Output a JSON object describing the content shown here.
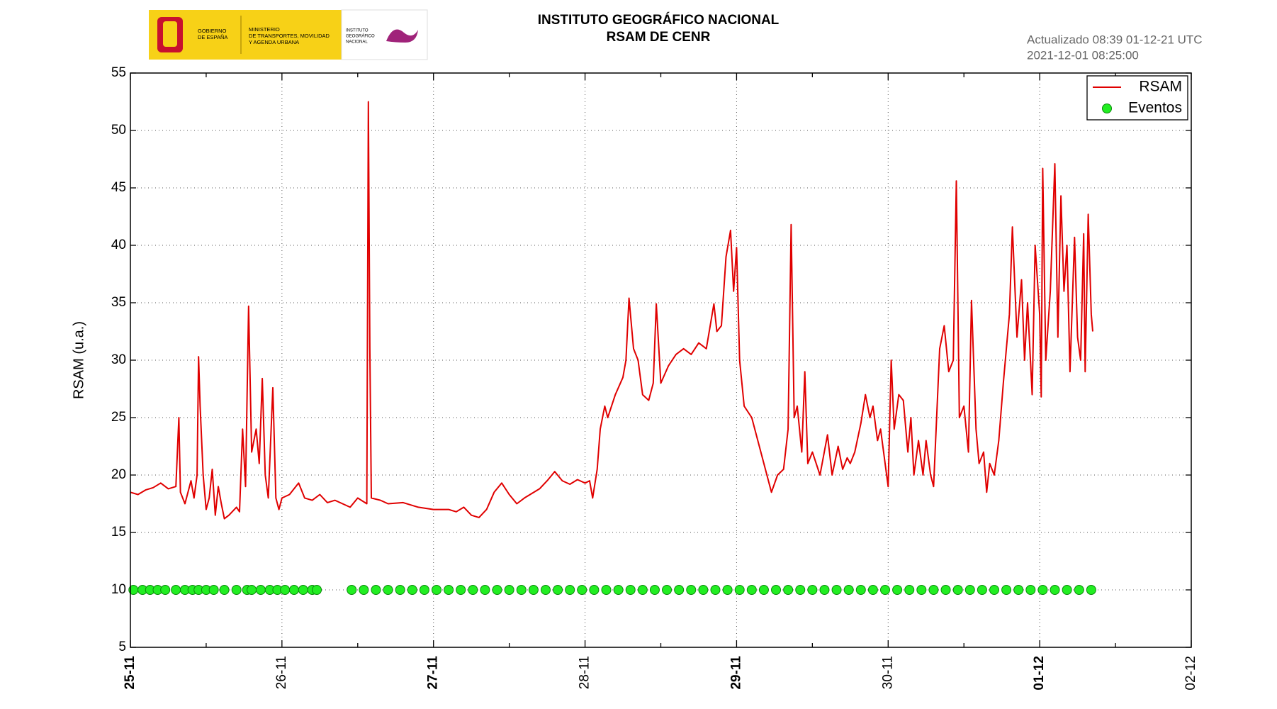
{
  "header": {
    "logo": {
      "gov": [
        "GOBIERNO",
        "DE ESPAÑA"
      ],
      "ministry": [
        "MINISTERIO",
        "DE TRANSPORTES, MOVILIDAD",
        "Y AGENDA URBANA"
      ],
      "ign": [
        "INSTITUTO",
        "GEOGRÁFICO",
        "NACIONAL"
      ]
    },
    "updated": [
      "Actualizado 08:39 01-12-21 UTC",
      "2021-12-01 08:25:00"
    ]
  },
  "chart_data": {
    "type": "line",
    "title": [
      "INSTITUTO GEOGRÁFICO NACIONAL",
      "RSAM DE CENR"
    ],
    "ylabel": "RSAM (u.a.)",
    "xlim": [
      0,
      7
    ],
    "xticks": [
      {
        "value": 0,
        "label": "25-11"
      },
      {
        "value": 1,
        "label": "26-11"
      },
      {
        "value": 2,
        "label": "27-11"
      },
      {
        "value": 3,
        "label": "28-11"
      },
      {
        "value": 4,
        "label": "29-11"
      },
      {
        "value": 5,
        "label": "30-11"
      },
      {
        "value": 6,
        "label": "01-12"
      },
      {
        "value": 7,
        "label": "02-12"
      }
    ],
    "xminor_ticks": [
      0.5,
      1.5,
      2.5,
      3.5,
      4.5,
      5.5,
      6.5
    ],
    "ylim": [
      5,
      55
    ],
    "yticks": [
      5,
      10,
      15,
      20,
      25,
      30,
      35,
      40,
      45,
      50,
      55
    ],
    "grid": true,
    "legend": "upper right",
    "series": [
      {
        "name": "RSAM",
        "type": "line",
        "color": "#e00000",
        "x": [
          0,
          0.05,
          0.1,
          0.15,
          0.2,
          0.25,
          0.3,
          0.32,
          0.33,
          0.36,
          0.4,
          0.42,
          0.44,
          0.45,
          0.46,
          0.48,
          0.5,
          0.52,
          0.54,
          0.56,
          0.58,
          0.6,
          0.62,
          0.65,
          0.7,
          0.72,
          0.74,
          0.76,
          0.78,
          0.8,
          0.83,
          0.85,
          0.87,
          0.89,
          0.91,
          0.94,
          0.96,
          0.98,
          1.0,
          1.05,
          1.11,
          1.15,
          1.2,
          1.25,
          1.3,
          1.35,
          1.4,
          1.45,
          1.5,
          1.56,
          1.57,
          1.58,
          1.59,
          1.65,
          1.7,
          1.8,
          1.9,
          2.0,
          2.1,
          2.15,
          2.2,
          2.25,
          2.3,
          2.35,
          2.4,
          2.45,
          2.5,
          2.55,
          2.6,
          2.7,
          2.75,
          2.8,
          2.85,
          2.9,
          2.95,
          3.0,
          3.03,
          3.05,
          3.08,
          3.1,
          3.13,
          3.15,
          3.2,
          3.25,
          3.27,
          3.29,
          3.32,
          3.35,
          3.38,
          3.42,
          3.45,
          3.47,
          3.5,
          3.55,
          3.6,
          3.65,
          3.7,
          3.75,
          3.8,
          3.85,
          3.87,
          3.9,
          3.93,
          3.96,
          3.98,
          4.0,
          4.02,
          4.05,
          4.1,
          4.15,
          4.2,
          4.23,
          4.27,
          4.31,
          4.34,
          4.36,
          4.38,
          4.4,
          4.43,
          4.45,
          4.47,
          4.5,
          4.55,
          4.6,
          4.63,
          4.67,
          4.7,
          4.73,
          4.75,
          4.78,
          4.82,
          4.85,
          4.88,
          4.9,
          4.93,
          4.95,
          4.98,
          5.0,
          5.02,
          5.04,
          5.07,
          5.1,
          5.13,
          5.15,
          5.17,
          5.2,
          5.23,
          5.25,
          5.28,
          5.3,
          5.32,
          5.34,
          5.37,
          5.4,
          5.43,
          5.45,
          5.47,
          5.5,
          5.53,
          5.55,
          5.58,
          5.6,
          5.63,
          5.65,
          5.67,
          5.7,
          5.73,
          5.76,
          5.8,
          5.82,
          5.85,
          5.88,
          5.9,
          5.92,
          5.95,
          5.97,
          6.0,
          6.01,
          6.02,
          6.04,
          6.07,
          6.1,
          6.12,
          6.14,
          6.16,
          6.18,
          6.2,
          6.23,
          6.25,
          6.27,
          6.29,
          6.3,
          6.32,
          6.34,
          6.35
        ],
        "values": [
          18.5,
          18.3,
          18.7,
          18.9,
          19.3,
          18.8,
          19.0,
          25.0,
          18.5,
          17.5,
          19.5,
          18,
          20,
          30.3,
          26,
          20,
          17,
          18,
          20.5,
          16.5,
          19,
          17.5,
          16.2,
          16.5,
          17.2,
          16.8,
          24,
          19,
          34.7,
          22,
          24,
          21,
          28.4,
          20,
          18,
          27.6,
          18,
          17,
          18,
          18.3,
          19.3,
          18,
          17.8,
          18.3,
          17.6,
          17.8,
          17.5,
          17.2,
          18,
          17.5,
          52.5,
          31,
          18,
          17.8,
          17.5,
          17.6,
          17.2,
          17.0,
          17.0,
          16.8,
          17.2,
          16.5,
          16.3,
          17,
          18.5,
          19.3,
          18.3,
          17.5,
          18.0,
          18.8,
          19.5,
          20.3,
          19.5,
          19.2,
          19.6,
          19.3,
          19.5,
          18.0,
          20.5,
          24,
          26,
          25,
          27,
          28.5,
          30,
          35.4,
          31,
          30,
          27,
          26.5,
          28,
          34.9,
          28,
          29.5,
          30.5,
          31,
          30.5,
          31.5,
          31,
          34.9,
          32.5,
          33,
          39,
          41.3,
          36,
          39.8,
          30,
          26,
          25,
          22.5,
          20,
          18.5,
          20,
          20.5,
          24,
          41.8,
          25,
          26,
          22,
          29,
          21,
          22,
          20,
          23.5,
          20,
          22.5,
          20.5,
          21.5,
          21,
          22,
          24.5,
          27,
          25,
          26,
          23,
          24,
          21,
          19,
          30,
          24,
          27,
          26.5,
          22,
          25,
          20,
          23,
          20,
          23,
          20,
          19,
          25,
          31,
          33,
          29,
          30,
          45.6,
          25,
          26,
          22,
          35.2,
          24,
          21,
          22,
          18.5,
          21,
          20,
          23,
          28,
          34,
          41.6,
          32,
          37,
          30,
          35,
          27,
          40,
          34,
          26.8,
          46.7,
          30,
          36,
          47.1,
          32,
          44.3,
          36,
          40,
          29,
          40.7,
          32,
          30,
          41,
          29,
          42.7,
          34,
          32.5
        ]
      },
      {
        "name": "Eventos",
        "type": "scatter",
        "color": "#22ee22",
        "x": [
          0.02,
          0.08,
          0.13,
          0.18,
          0.23,
          0.3,
          0.36,
          0.41,
          0.45,
          0.5,
          0.55,
          0.62,
          0.7,
          0.77,
          0.8,
          0.86,
          0.92,
          0.97,
          1.02,
          1.08,
          1.14,
          1.2,
          1.23,
          1.46,
          1.54,
          1.62,
          1.7,
          1.78,
          1.86,
          1.94,
          2.02,
          2.1,
          2.18,
          2.26,
          2.34,
          2.42,
          2.5,
          2.58,
          2.66,
          2.74,
          2.82,
          2.9,
          2.98,
          3.06,
          3.14,
          3.22,
          3.3,
          3.38,
          3.46,
          3.54,
          3.62,
          3.7,
          3.78,
          3.86,
          3.94,
          4.02,
          4.1,
          4.18,
          4.26,
          4.34,
          4.42,
          4.5,
          4.58,
          4.66,
          4.74,
          4.82,
          4.9,
          4.98,
          5.06,
          5.14,
          5.22,
          5.3,
          5.38,
          5.46,
          5.54,
          5.62,
          5.7,
          5.78,
          5.86,
          5.94,
          6.02,
          6.1,
          6.18,
          6.26,
          6.34
        ],
        "values": [
          10,
          10,
          10,
          10,
          10,
          10,
          10,
          10,
          10,
          10,
          10,
          10,
          10,
          10,
          10,
          10,
          10,
          10,
          10,
          10,
          10,
          10,
          10,
          10,
          10,
          10,
          10,
          10,
          10,
          10,
          10,
          10,
          10,
          10,
          10,
          10,
          10,
          10,
          10,
          10,
          10,
          10,
          10,
          10,
          10,
          10,
          10,
          10,
          10,
          10,
          10,
          10,
          10,
          10,
          10,
          10,
          10,
          10,
          10,
          10,
          10,
          10,
          10,
          10,
          10,
          10,
          10,
          10,
          10,
          10,
          10,
          10,
          10,
          10,
          10,
          10,
          10,
          10,
          10,
          10,
          10,
          10,
          10,
          10,
          10
        ]
      }
    ]
  }
}
